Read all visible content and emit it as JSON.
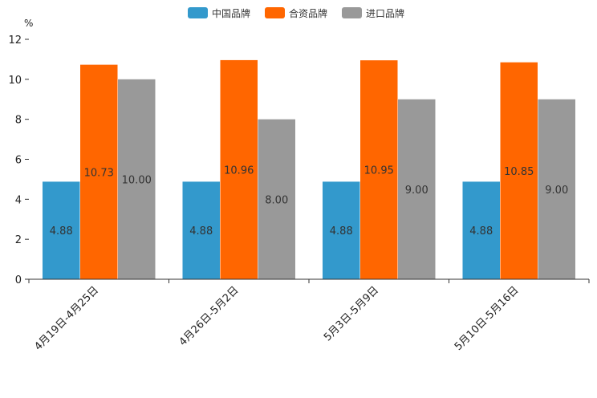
{
  "chart_data": {
    "type": "bar",
    "unit_label": "%",
    "categories": [
      "4月19日-4月25日",
      "4月26日-5月2日",
      "5月3日-5月9日",
      "5月10日-5月16日"
    ],
    "series": [
      {
        "name": "中国品牌",
        "color": "#3399cc",
        "values": [
          4.88,
          4.88,
          4.88,
          4.88
        ],
        "labels": [
          "4.88",
          "4.88",
          "4.88",
          "4.88"
        ]
      },
      {
        "name": "合资品牌",
        "color": "#ff6600",
        "values": [
          10.73,
          10.96,
          10.95,
          10.85
        ],
        "labels": [
          "10.73",
          "10.96",
          "10.95",
          "10.85"
        ]
      },
      {
        "name": "进口品牌",
        "color": "#999999",
        "values": [
          10.0,
          8.0,
          9.0,
          9.0
        ],
        "labels": [
          "10.00",
          "8.00",
          "9.00",
          "9.00"
        ]
      }
    ],
    "ylim": [
      0,
      12
    ],
    "yticks": [
      0,
      2,
      4,
      6,
      8,
      10,
      12
    ],
    "ytick_labels": [
      "0",
      "2",
      "4",
      "6",
      "8",
      "10",
      "12"
    ],
    "legend_position": "top-center",
    "grid": false
  }
}
